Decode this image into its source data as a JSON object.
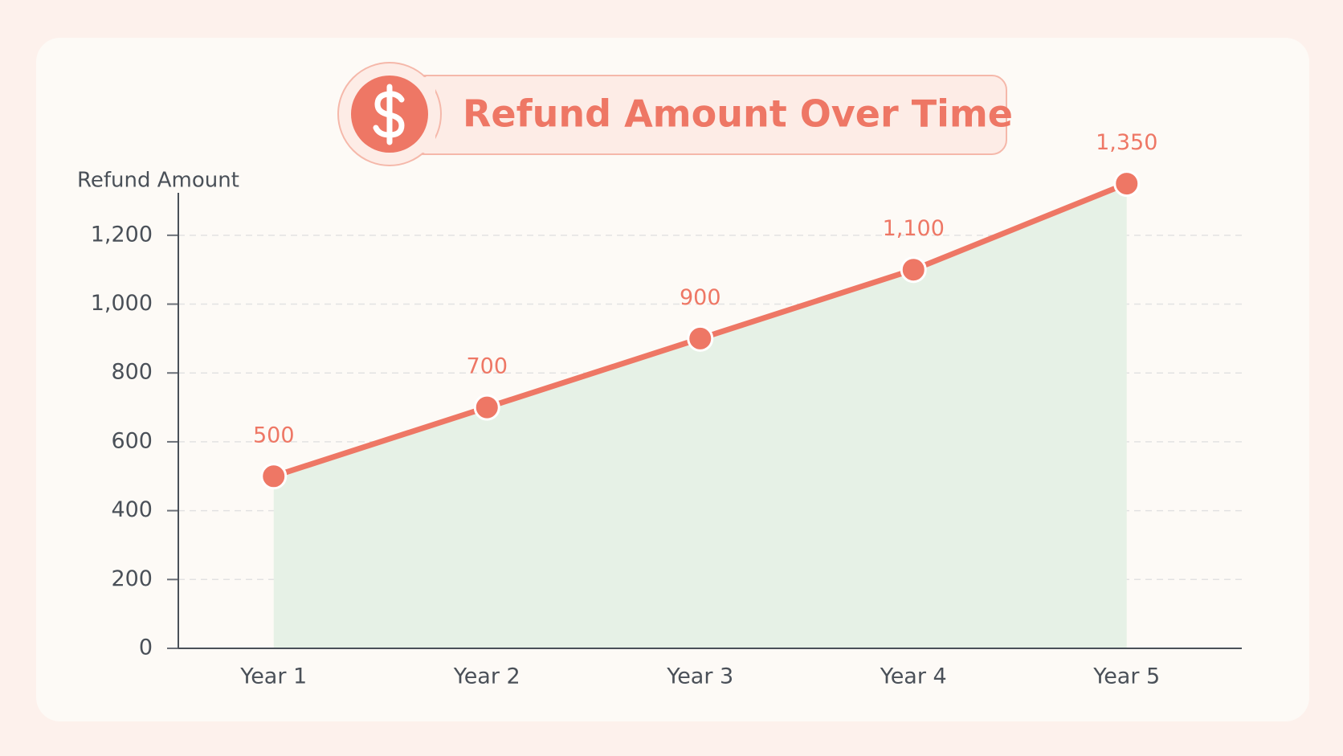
{
  "chart_data": {
    "type": "line",
    "title": "Refund Amount Over Time",
    "y_label": "Refund Amount",
    "categories": [
      "Year 1",
      "Year 2",
      "Year 3",
      "Year 4",
      "Year 5"
    ],
    "series": [
      {
        "name": "Refund Amount",
        "color": "#ee7765",
        "values": [
          500,
          700,
          900,
          1100,
          1350
        ],
        "value_labels": [
          "500",
          "700",
          "900",
          "1,100",
          "1,350"
        ]
      }
    ],
    "area_color": "#e6f1e6",
    "ylim": [
      0,
      1300
    ],
    "yticks": [
      0,
      200,
      400,
      600,
      800,
      {
        "value": 1000,
        "label": "1,000"
      },
      {
        "value": 1200,
        "label": "1,200"
      }
    ],
    "grid": true
  }
}
